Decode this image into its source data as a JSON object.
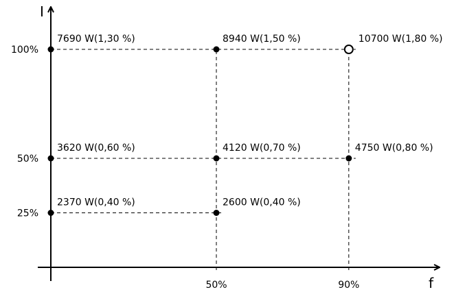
{
  "chart_data": {
    "type": "scatter",
    "title": "",
    "xlabel": "f",
    "ylabel": "I",
    "x_ticks": [
      {
        "value": 50,
        "label": "50%"
      },
      {
        "value": 90,
        "label": "90%"
      }
    ],
    "y_ticks": [
      {
        "value": 25,
        "label": "25%"
      },
      {
        "value": 50,
        "label": "50%"
      },
      {
        "value": 100,
        "label": "100%"
      }
    ],
    "grid": false,
    "points": [
      {
        "x": 0,
        "y": 25,
        "power_w": 2370,
        "percent": "0,40 %",
        "label": "2370 W(0,40 %)",
        "marker": "filled"
      },
      {
        "x": 50,
        "y": 25,
        "power_w": 2600,
        "percent": "0,40 %",
        "label": "2600 W(0,40 %)",
        "marker": "filled"
      },
      {
        "x": 0,
        "y": 50,
        "power_w": 3620,
        "percent": "0,60 %",
        "label": "3620 W(0,60 %)",
        "marker": "filled"
      },
      {
        "x": 50,
        "y": 50,
        "power_w": 4120,
        "percent": "0,70 %",
        "label": "4120 W(0,70 %)",
        "marker": "filled"
      },
      {
        "x": 90,
        "y": 50,
        "power_w": 4750,
        "percent": "0,80 %",
        "label": "4750 W(0,80 %)",
        "marker": "filled"
      },
      {
        "x": 0,
        "y": 100,
        "power_w": 7690,
        "percent": "1,30 %",
        "label": "7690 W(1,30 %)",
        "marker": "filled"
      },
      {
        "x": 50,
        "y": 100,
        "power_w": 8940,
        "percent": "1,50 %",
        "label": "8940 W(1,50 %)",
        "marker": "filled"
      },
      {
        "x": 90,
        "y": 100,
        "power_w": 10700,
        "percent": "1,80 %",
        "label": "10700 W(1,80 %)",
        "marker": "open"
      }
    ],
    "colors": {
      "ink": "#000000",
      "background": "#ffffff"
    }
  }
}
